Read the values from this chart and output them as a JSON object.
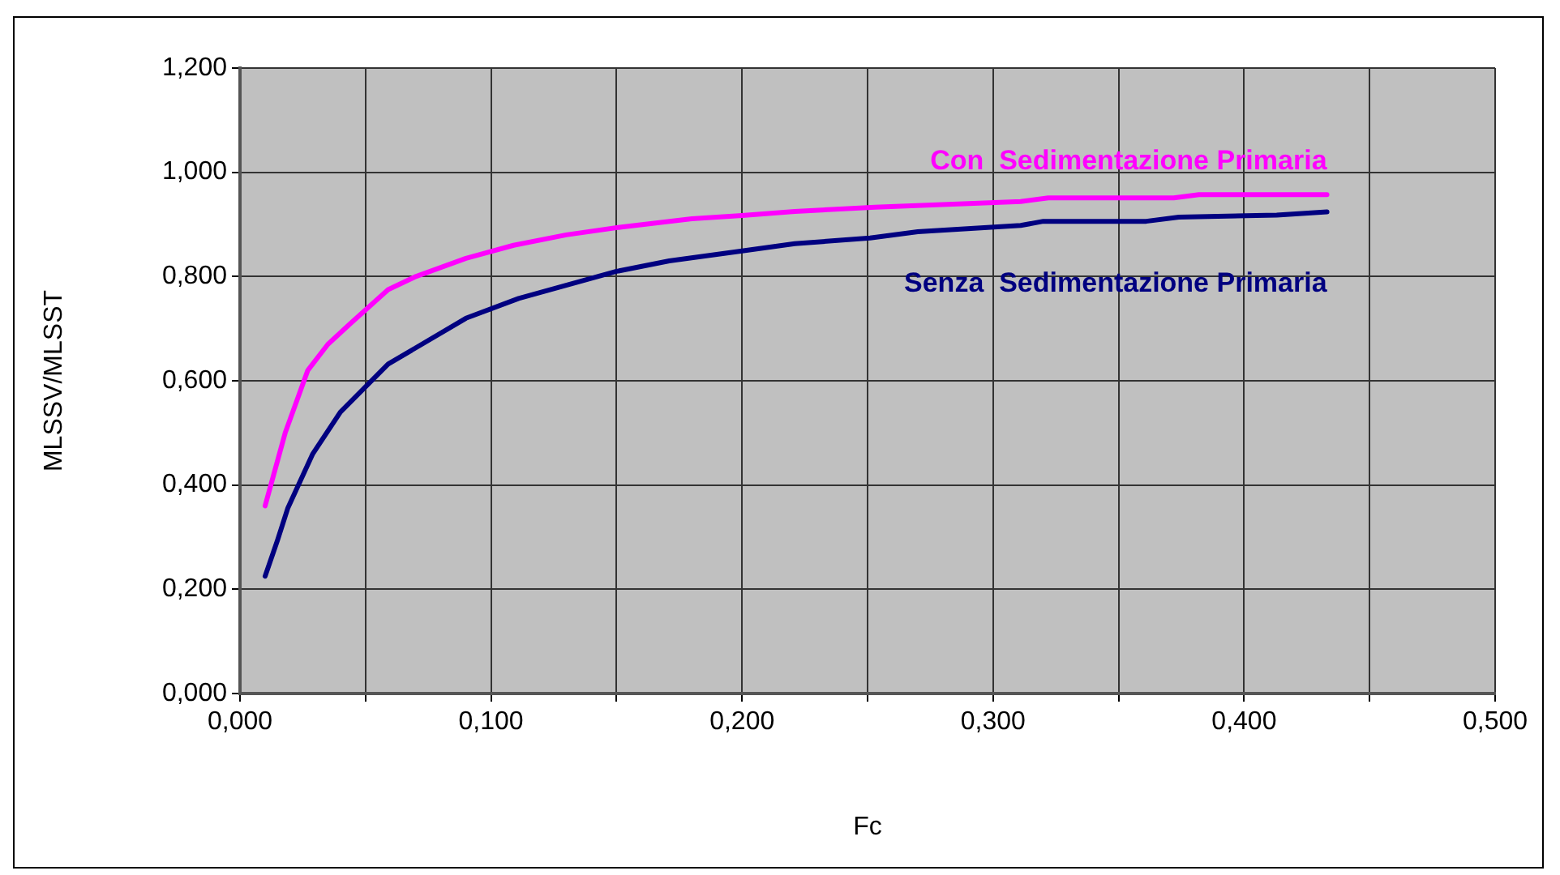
{
  "chart_data": {
    "type": "line",
    "xlabel": "Fc",
    "ylabel": "MLSSV/MLSST",
    "xlim": [
      0,
      0.5
    ],
    "xticks": [
      {
        "value": 0,
        "label": "0,000"
      },
      {
        "value": 0.05,
        "label": null
      },
      {
        "value": 0.1,
        "label": "0,100"
      },
      {
        "value": 0.15,
        "label": null
      },
      {
        "value": 0.2,
        "label": "0,200"
      },
      {
        "value": 0.25,
        "label": null
      },
      {
        "value": 0.3,
        "label": "0,300"
      },
      {
        "value": 0.35,
        "label": null
      },
      {
        "value": 0.4,
        "label": "0,400"
      },
      {
        "value": 0.45,
        "label": null
      },
      {
        "value": 0.5,
        "label": "0,500"
      }
    ],
    "ylim": [
      0,
      1.2
    ],
    "yticks": [
      {
        "value": 0,
        "label": "0,000"
      },
      {
        "value": 0.2,
        "label": "0,200"
      },
      {
        "value": 0.4,
        "label": "0,400"
      },
      {
        "value": 0.6,
        "label": "0,600"
      },
      {
        "value": 0.8,
        "label": "0,800"
      },
      {
        "value": 1,
        "label": "1,000"
      },
      {
        "value": 1.2,
        "label": "1,200"
      }
    ],
    "grid": true,
    "legend": false,
    "marker": "none",
    "line_style": "solid",
    "series": [
      {
        "name": "Con  Sedimentazione Primaria",
        "color": "#ff00ff",
        "x": [
          0.01,
          0.014,
          0.018,
          0.027,
          0.035,
          0.044,
          0.059,
          0.07,
          0.09,
          0.109,
          0.13,
          0.152,
          0.18,
          0.2,
          0.221,
          0.253,
          0.311,
          0.322,
          0.372,
          0.382,
          0.433
        ],
        "values": [
          0.36,
          0.43,
          0.5,
          0.62,
          0.67,
          0.71,
          0.775,
          0.8,
          0.835,
          0.86,
          0.88,
          0.895,
          0.911,
          0.917,
          0.925,
          0.933,
          0.944,
          0.951,
          0.951,
          0.957,
          0.957
        ]
      },
      {
        "name": "Senza  Sedimentazione Primaria",
        "color": "#000080",
        "x": [
          0.01,
          0.015,
          0.019,
          0.029,
          0.04,
          0.059,
          0.09,
          0.111,
          0.15,
          0.171,
          0.2,
          0.221,
          0.251,
          0.27,
          0.311,
          0.32,
          0.361,
          0.374,
          0.413,
          0.433
        ],
        "values": [
          0.225,
          0.295,
          0.355,
          0.46,
          0.54,
          0.632,
          0.72,
          0.758,
          0.81,
          0.83,
          0.849,
          0.863,
          0.874,
          0.886,
          0.898,
          0.906,
          0.906,
          0.914,
          0.918,
          0.924
        ]
      }
    ]
  }
}
